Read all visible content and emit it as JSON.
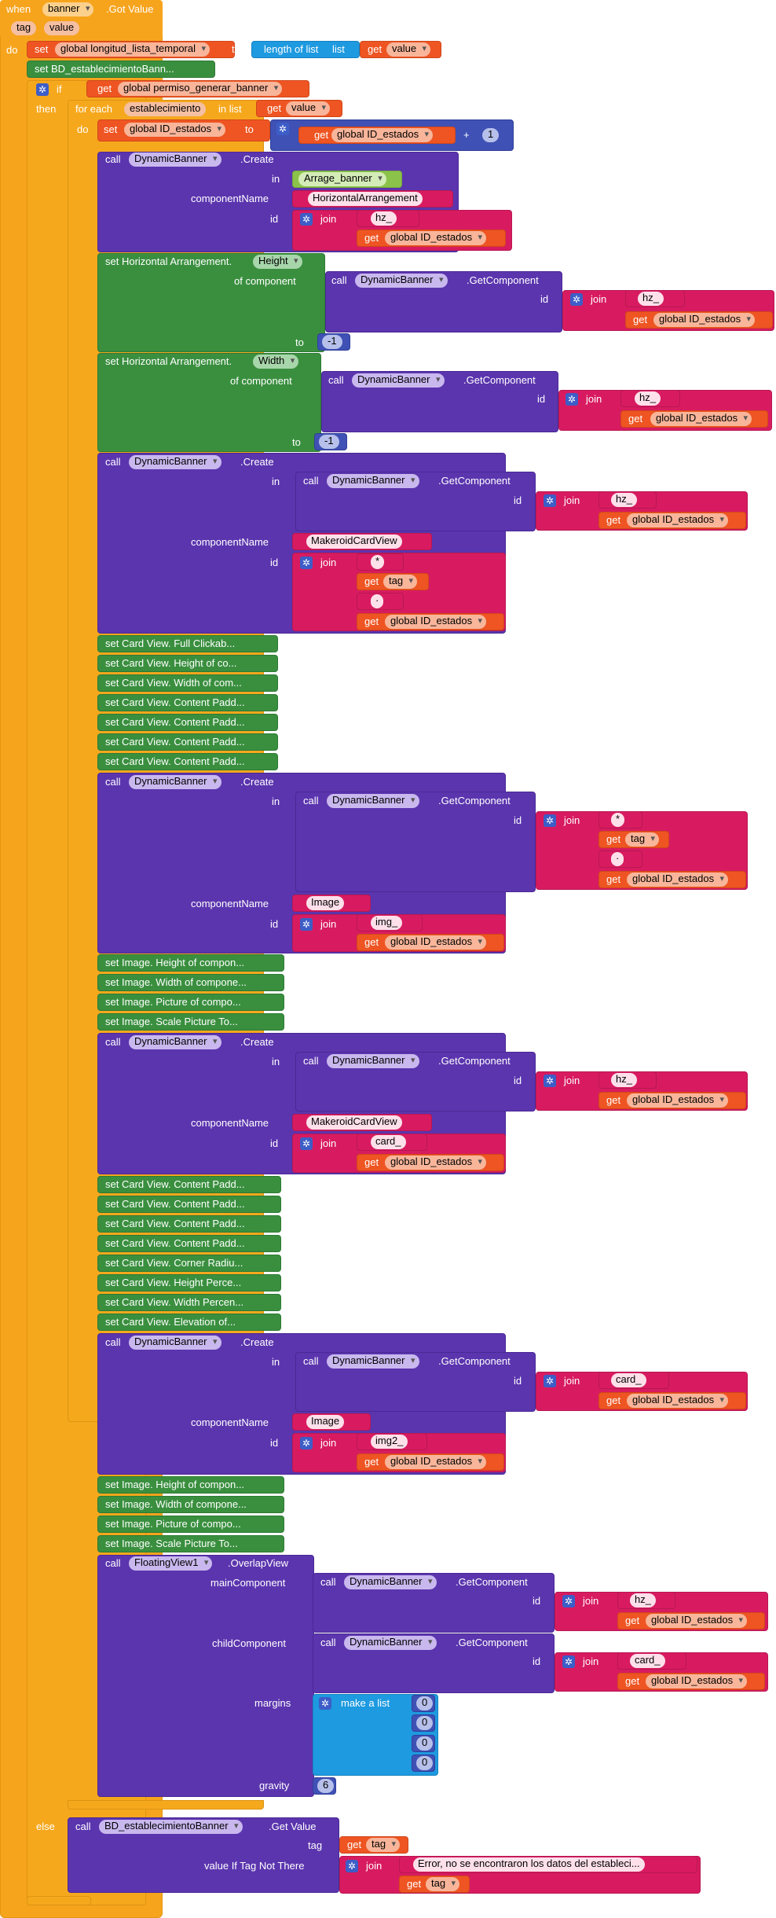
{
  "event": {
    "when": "when",
    "component": "banner",
    "event_name": ".Got Value",
    "param_tag": "tag",
    "param_value": "value",
    "do": "do"
  },
  "kw": {
    "set": "set",
    "to": "to",
    "get": "get",
    "call": "call",
    "if": "if",
    "then": "then",
    "else": "else",
    "do": "do",
    "for_each": "for each",
    "in_list": "in list",
    "in": "in",
    "join": "join",
    "plus": "+",
    "create": ".Create",
    "getcomponent": ".GetComponent",
    "componentName": "componentName",
    "id": "id",
    "of_component": "of component",
    "mainComponent": "mainComponent",
    "childComponent": "childComponent",
    "margins": "margins",
    "gravity": "gravity",
    "make_a_list": "make a list",
    "tag": "tag",
    "value_if": "value If Tag Not There",
    "get_value": ".Get Value",
    "overlap": ".OverlapView",
    "length_of_list": "length of list",
    "list": "list"
  },
  "vars": {
    "longitud": "global longitud_lista_temporal",
    "permiso": "global permiso_generar_banner",
    "id_estados": "global ID_estados",
    "value": "value",
    "tag": "tag",
    "item": "establecimiento"
  },
  "components": {
    "dynamic": "DynamicBanner",
    "floating": "FloatingView1",
    "bd": "BD_establecimientoBanner",
    "arrage": "Arrage_banner",
    "ha": "HorizontalArrangement",
    "card": "MakeroidCardView",
    "image": "Image"
  },
  "labels": {
    "set_bd": "set  BD_establecimientoBann...",
    "set_ha_height": "set Horizontal Arrangement.",
    "prop_height": "Height",
    "prop_width": "Width",
    "cv1": [
      "set Card View. Full Clickab...",
      "set Card View. Height of co...",
      "set Card View. Width of com...",
      "set Card View. Content Padd...",
      "set Card View. Content Padd...",
      "set Card View. Content Padd...",
      "set Card View. Content Padd..."
    ],
    "img1": [
      "set Image. Height of compon...",
      "set Image. Width of compone...",
      "set Image. Picture of compo...",
      "set Image. Scale Picture To..."
    ],
    "cv2": [
      "set Card View. Content Padd...",
      "set Card View. Content Padd...",
      "set Card View. Content Padd...",
      "set Card View. Content Padd...",
      "set Card View. Corner Radiu...",
      "set Card View. Height Perce...",
      "set Card View. Width Percen...",
      "set Card View. Elevation of..."
    ],
    "img2": [
      "set Image. Height of compon...",
      "set Image. Width of compone...",
      "set Image. Picture of compo...",
      "set Image. Scale Picture To..."
    ]
  },
  "strings": {
    "hz": "hz_",
    "img": "img_",
    "card": "card_",
    "img2": "img2_",
    "star": "*",
    "dot": "·",
    "error": "Error, no se encontraron los datos del estableci..."
  },
  "numbers": {
    "one": "1",
    "neg_one": "-1",
    "zero": "0",
    "six": "6"
  }
}
